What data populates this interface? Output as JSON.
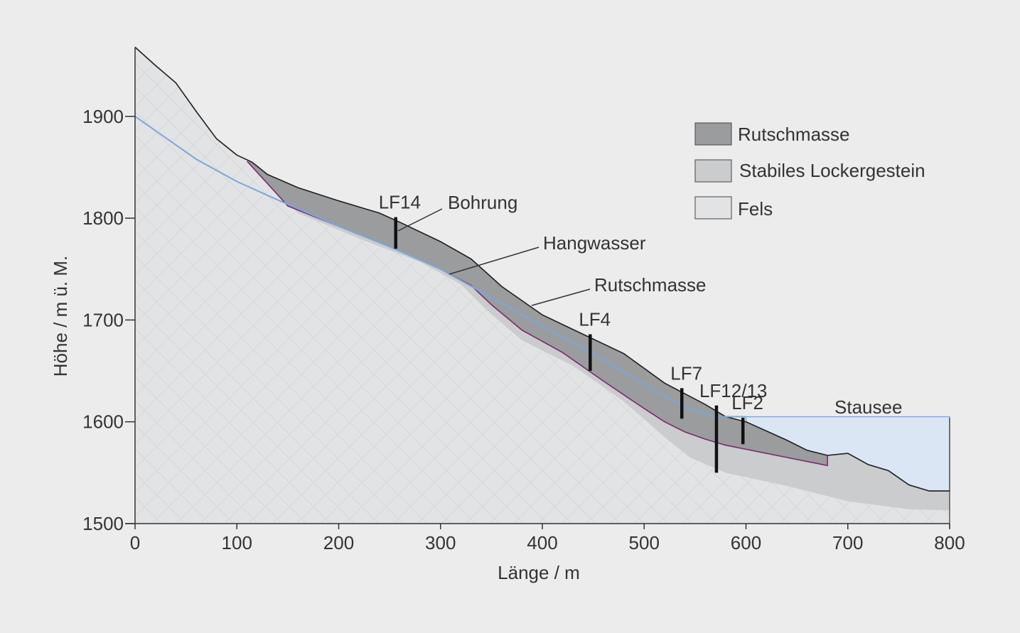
{
  "axes": {
    "x_label": "Länge / m",
    "y_label": "Höhe / m ü. M.",
    "x_range": [
      0,
      800
    ],
    "y_range": [
      1500,
      1970
    ],
    "x_ticks": [
      "0",
      "100",
      "200",
      "300",
      "400",
      "500",
      "600",
      "700",
      "800"
    ],
    "y_ticks": [
      "1500",
      "1600",
      "1700",
      "1800",
      "1900"
    ]
  },
  "legend": [
    {
      "label": "Rutschmasse",
      "color": "#9a9c9e"
    },
    {
      "label": "Stabiles Lockergestein",
      "color": "#cbcccd"
    },
    {
      "label": "Fels",
      "color": "#e2e3e4"
    }
  ],
  "annotations": {
    "bohrung": "Bohrung",
    "hangwasser": "Hangwasser",
    "rutschmasse": "Rutschmasse",
    "stausee": "Stausee"
  },
  "boreholes": [
    {
      "label": "LF14",
      "x": 256,
      "top": 1801,
      "bottom": 1770
    },
    {
      "label": "LF4",
      "x": 447,
      "top": 1686,
      "bottom": 1650
    },
    {
      "label": "LF7",
      "x": 537,
      "top": 1633,
      "bottom": 1603
    },
    {
      "label": "LF12/13",
      "x": 571,
      "top": 1616,
      "bottom": 1550
    },
    {
      "label": "LF2",
      "x": 597,
      "top": 1604,
      "bottom": 1578
    }
  ],
  "colors": {
    "rutschmasse": "#9a9c9e",
    "lockergestein": "#cbcccd",
    "fels": "#e2e3e4",
    "hangwasser": "#7ca6dc",
    "gleitflaeche": "#7a2a6a",
    "stausee": "#dbe6f5",
    "background": "#ececec"
  },
  "chart_data": {
    "type": "area",
    "xlabel": "Länge / m",
    "ylabel": "Höhe / m ü. M.",
    "xlim": [
      0,
      800
    ],
    "ylim": [
      1500,
      1970
    ],
    "series": [
      {
        "name": "Rutschmasse",
        "x": [
          0,
          20,
          40,
          60,
          80,
          100,
          115,
          130,
          160,
          200,
          240,
          260,
          300,
          330,
          360,
          400,
          440,
          480,
          520,
          560,
          580,
          600,
          640,
          660,
          680,
          700,
          720,
          740,
          760,
          780,
          800
        ],
        "values": [
          1968,
          1950,
          1933,
          1905,
          1878,
          1862,
          1855,
          1843,
          1830,
          1817,
          1805,
          1796,
          1777,
          1760,
          1733,
          1705,
          1686,
          1667,
          1638,
          1617,
          1605,
          1600,
          1582,
          1572,
          1567,
          1569,
          1558,
          1552,
          1538,
          1532,
          1532
        ]
      },
      {
        "name": "Stabiles Lockergestein",
        "x": [
          110,
          150,
          200,
          250,
          300,
          330,
          350,
          380,
          420,
          460,
          500,
          520,
          540,
          560,
          580,
          600,
          640,
          680,
          720,
          760,
          800
        ],
        "values": [
          1856,
          1812,
          1792,
          1772,
          1750,
          1734,
          1715,
          1690,
          1668,
          1640,
          1613,
          1600,
          1590,
          1583,
          1577,
          1573,
          1565,
          1557,
          1548,
          1540,
          1530
        ]
      },
      {
        "name": "Fels",
        "x": [
          0,
          100,
          200,
          300,
          330,
          350,
          380,
          420,
          460,
          500,
          530,
          550,
          600,
          680,
          750,
          800
        ],
        "values": [
          1500,
          1500,
          1500,
          1500,
          1500,
          1500,
          1500,
          1500,
          1500,
          1500,
          1500,
          1500,
          1500,
          1500,
          1500,
          1500
        ]
      },
      {
        "name": "Hangwasser",
        "x": [
          0,
          40,
          60,
          100,
          140,
          200,
          250,
          300,
          350,
          400,
          450,
          500,
          540,
          570,
          590,
          600
        ],
        "values": [
          1900,
          1872,
          1858,
          1836,
          1818,
          1792,
          1772,
          1750,
          1722,
          1694,
          1667,
          1637,
          1614,
          1605,
          1605,
          1605
        ]
      },
      {
        "name": "Stausee",
        "x": [
          590,
          800
        ],
        "values": [
          1605,
          1605
        ]
      }
    ]
  }
}
